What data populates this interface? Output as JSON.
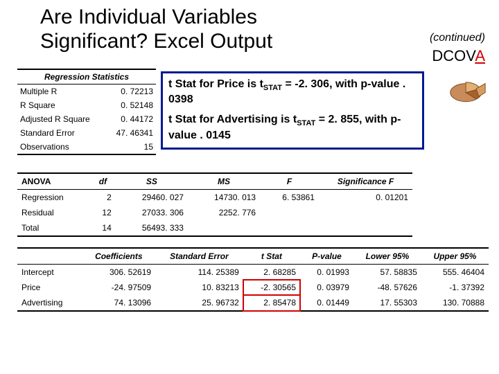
{
  "title_line1": "Are Individual Variables",
  "title_line2": "Significant?  Excel Output",
  "continued": "(continued)",
  "dcova_prefix": "DCOV",
  "dcova_a": "A",
  "regstats": {
    "header": "Regression Statistics",
    "rows": [
      {
        "label": "Multiple R",
        "value": "0. 72213"
      },
      {
        "label": "R Square",
        "value": "0. 52148"
      },
      {
        "label": "Adjusted R Square",
        "value": "0. 44172"
      },
      {
        "label": "Standard Error",
        "value": "47. 46341"
      },
      {
        "label": "Observations",
        "value": "15"
      }
    ]
  },
  "callout": {
    "p1a": "t Stat for Price is  t",
    "p1sub": "STAT",
    "p1b": " = -2. 306, with p-value . 0398",
    "p2a": "t Stat for Advertising is t",
    "p2sub": "STAT",
    "p2b": " = 2. 855, with p-value . 0145"
  },
  "anova": {
    "header": [
      "ANOVA",
      "df",
      "SS",
      "MS",
      "F",
      "Significance F"
    ],
    "rows": [
      [
        "Regression",
        "2",
        "29460. 027",
        "14730. 013",
        "6. 53861",
        "0. 01201"
      ],
      [
        "Residual",
        "12",
        "27033. 306",
        "2252. 776",
        "",
        ""
      ],
      [
        "Total",
        "14",
        "56493. 333",
        "",
        "",
        ""
      ]
    ]
  },
  "coef": {
    "header": [
      "",
      "Coefficients",
      "Standard Error",
      "t Stat",
      "P-value",
      "Lower 95%",
      "Upper 95%"
    ],
    "rows": [
      {
        "cells": [
          "Intercept",
          "306. 52619",
          "114. 25389",
          "2. 68285",
          "0. 01993",
          "57. 58835",
          "555. 46404"
        ],
        "hl": null
      },
      {
        "cells": [
          "Price",
          "-24. 97509",
          "10. 83213",
          "-2. 30565",
          "0. 03979",
          "-48. 57626",
          "-1. 37392"
        ],
        "hl": 3
      },
      {
        "cells": [
          "Advertising",
          "74. 13096",
          "25. 96732",
          "2. 85478",
          "0. 01449",
          "17. 55303",
          "130. 70888"
        ],
        "hl": 3
      }
    ]
  },
  "colors": {
    "callout_border": "#001a8f",
    "highlight": "#d00000"
  }
}
